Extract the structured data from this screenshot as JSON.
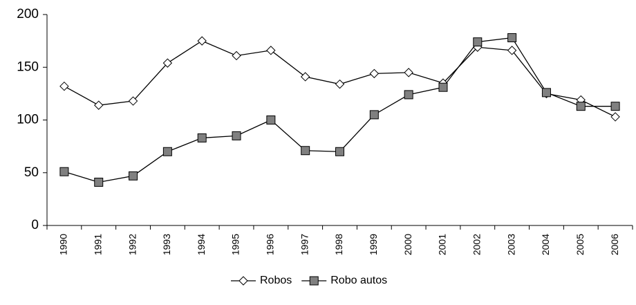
{
  "chart_data": {
    "type": "line",
    "categories": [
      "1990",
      "1991",
      "1992",
      "1993",
      "1994",
      "1995",
      "1996",
      "1997",
      "1998",
      "1999",
      "2000",
      "2001",
      "2002",
      "2003",
      "2004",
      "2005",
      "2006"
    ],
    "series": [
      {
        "name": "Robos",
        "color": "#000000",
        "marker": "diamond",
        "values": [
          132,
          114,
          118,
          154,
          175,
          161,
          166,
          141,
          134,
          144,
          145,
          135,
          169,
          166,
          125,
          119,
          103
        ]
      },
      {
        "name": "Robo autos",
        "color": "#000000",
        "marker": "square",
        "values": [
          51,
          41,
          47,
          70,
          83,
          85,
          100,
          71,
          70,
          105,
          124,
          131,
          174,
          178,
          126,
          113,
          113
        ]
      }
    ],
    "ylim": [
      0,
      200
    ],
    "yticks": [
      0,
      50,
      100,
      150,
      200
    ],
    "grid": false,
    "legend": "bottom"
  }
}
